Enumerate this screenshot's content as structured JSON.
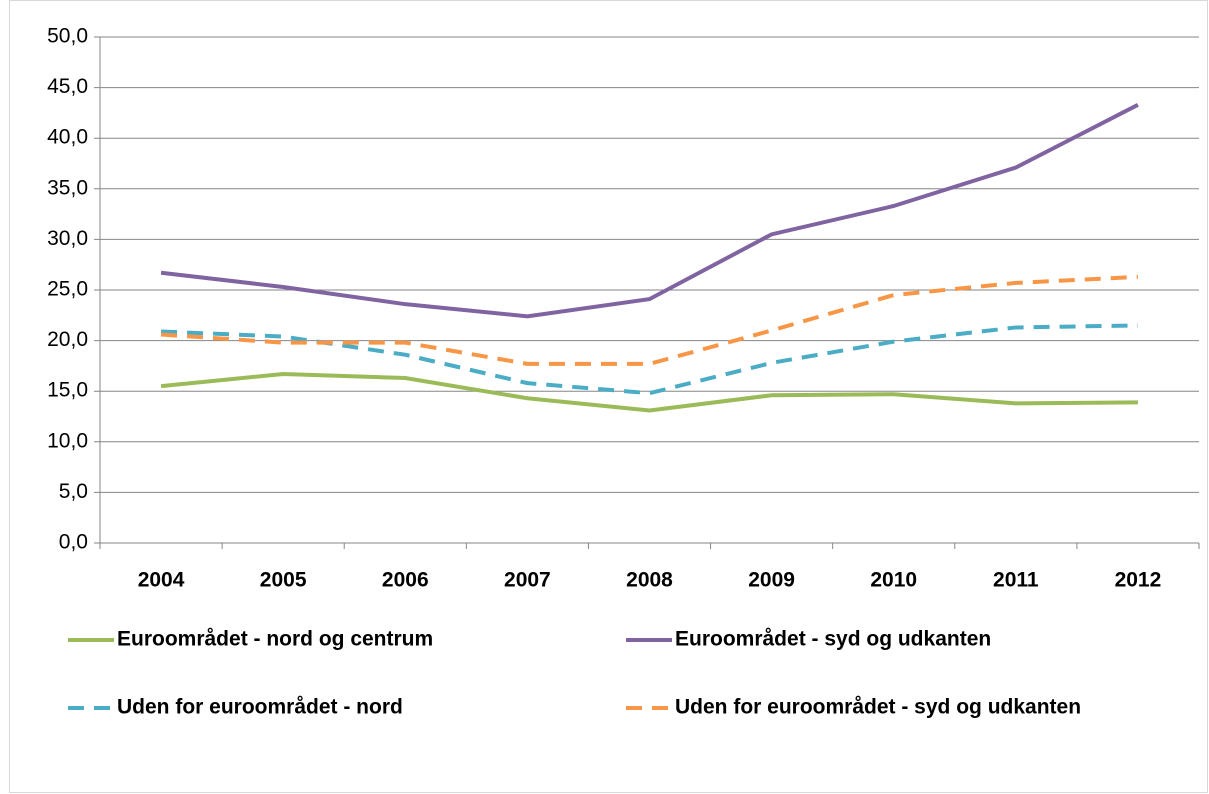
{
  "chart_data": {
    "type": "line",
    "categories": [
      "2004",
      "2005",
      "2006",
      "2007",
      "2008",
      "2009",
      "2010",
      "2011",
      "2012"
    ],
    "series": [
      {
        "name": "Euroområdet - nord og centrum",
        "color": "#9bbb59",
        "dashed": false,
        "values": [
          15.5,
          16.7,
          16.3,
          14.3,
          13.1,
          14.6,
          14.7,
          13.8,
          13.9
        ]
      },
      {
        "name": "Euroområdet - syd og udkanten",
        "color": "#8064a2",
        "dashed": false,
        "values": [
          26.7,
          25.3,
          23.6,
          22.4,
          24.1,
          30.5,
          33.3,
          37.1,
          43.3
        ]
      },
      {
        "name": "Uden for euroområdet - nord",
        "color": "#4bacc6",
        "dashed": true,
        "values": [
          20.9,
          20.4,
          18.6,
          15.8,
          14.8,
          17.8,
          19.9,
          21.3,
          21.5
        ]
      },
      {
        "name": "Uden for euroområdet - syd og udkanten",
        "color": "#f79646",
        "dashed": true,
        "values": [
          20.6,
          19.8,
          19.8,
          17.7,
          17.7,
          21.0,
          24.5,
          25.7,
          26.3
        ]
      }
    ],
    "ylim": [
      0,
      50
    ],
    "yticks": [
      {
        "value": 0,
        "label": "0,0"
      },
      {
        "value": 5,
        "label": "5,0"
      },
      {
        "value": 10,
        "label": "10,0"
      },
      {
        "value": 15,
        "label": "15,0"
      },
      {
        "value": 20,
        "label": "20,0"
      },
      {
        "value": 25,
        "label": "25,0"
      },
      {
        "value": 30,
        "label": "30,0"
      },
      {
        "value": 35,
        "label": "35,0"
      },
      {
        "value": 40,
        "label": "40,0"
      },
      {
        "value": 45,
        "label": "45,0"
      },
      {
        "value": 50,
        "label": "50,0"
      }
    ],
    "grid": true,
    "legend": "bottom"
  }
}
